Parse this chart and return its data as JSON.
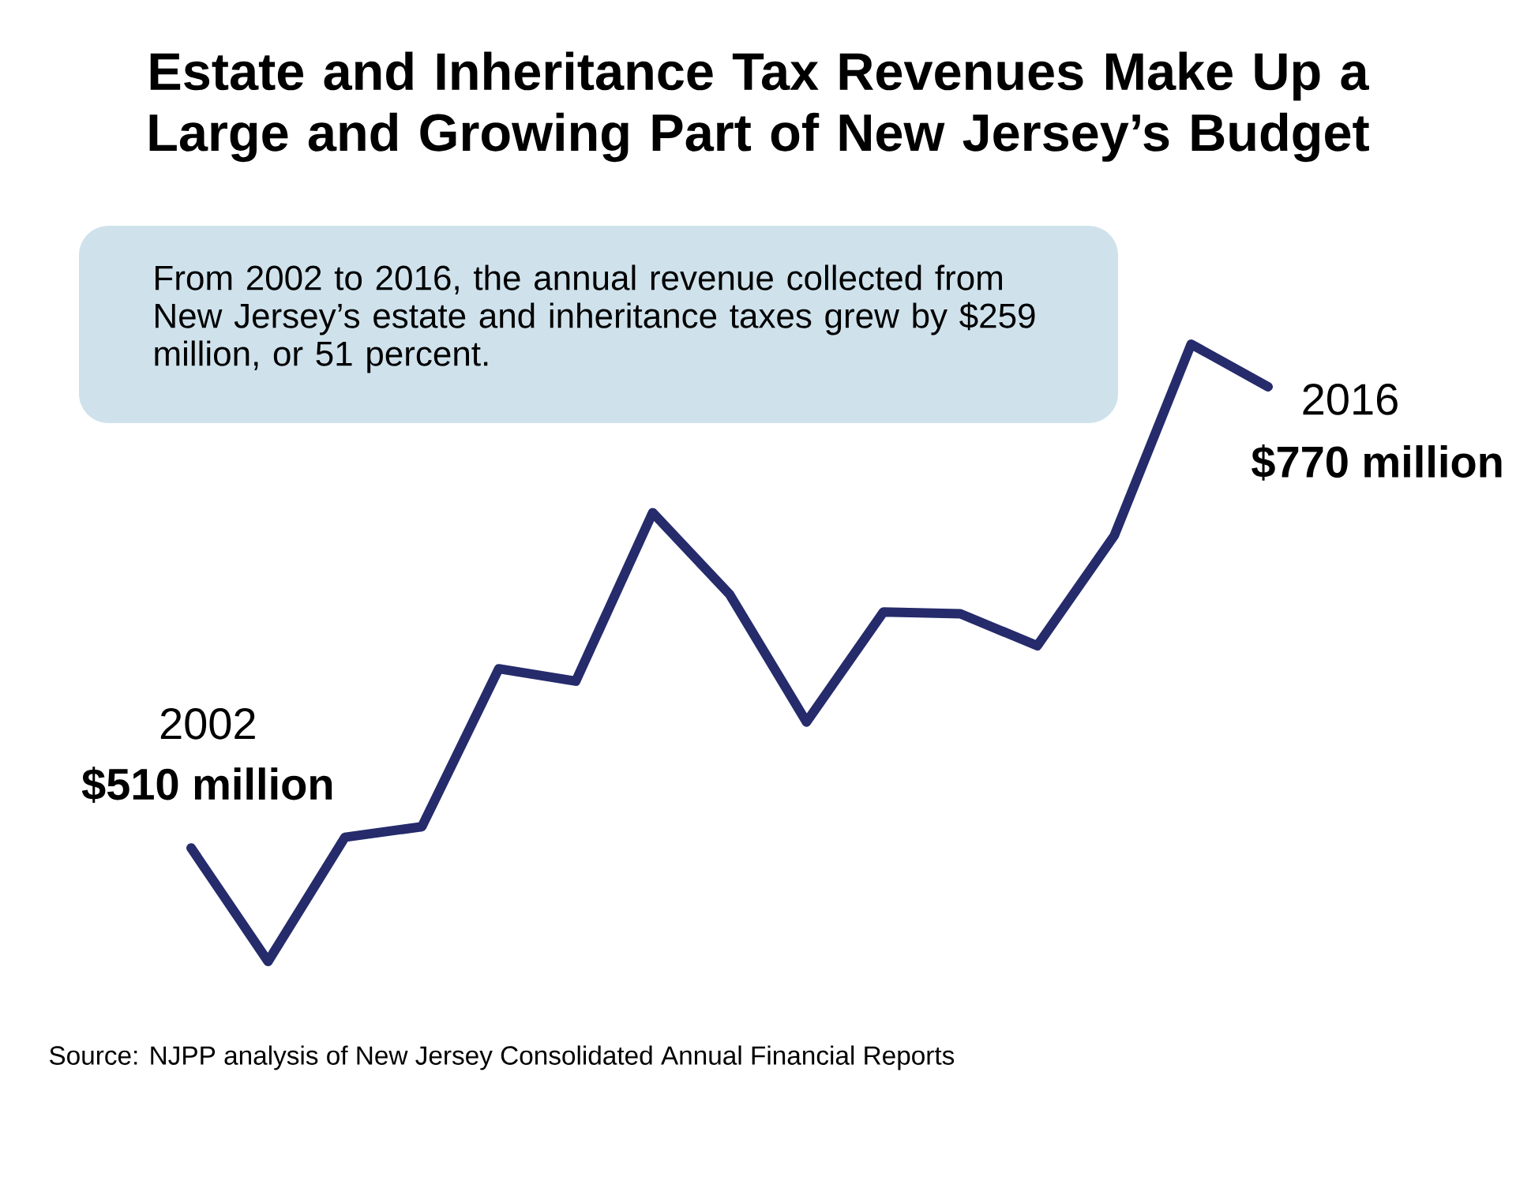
{
  "chart_data": {
    "type": "line",
    "title": "Estate and Inheritance Tax Revenues Make Up a Large and Growing Part of New Jersey’s Budget",
    "categories": [
      null,
      null,
      null,
      null,
      null,
      null,
      null,
      null,
      null,
      null,
      null,
      null,
      null,
      null,
      null
    ],
    "values": [
      510,
      446,
      516,
      522,
      611,
      604,
      699,
      653,
      581,
      643,
      642,
      624,
      686,
      794,
      770
    ],
    "value_labels": [
      "$510 million",
      null,
      null,
      null,
      null,
      null,
      null,
      null,
      null,
      null,
      null,
      null,
      null,
      null,
      "$770 million"
    ],
    "color": "#252b6b",
    "line_style": "solid",
    "annotations": [
      "From 2002 to 2016, the annual revenue collected from New Jersey’s estate and inheritance taxes grew by $259 million, or 51 percent.",
      "2002",
      "2016",
      "Source: NJPP analysis of New Jersey Consolidated Annual Financial Reports"
    ]
  }
}
